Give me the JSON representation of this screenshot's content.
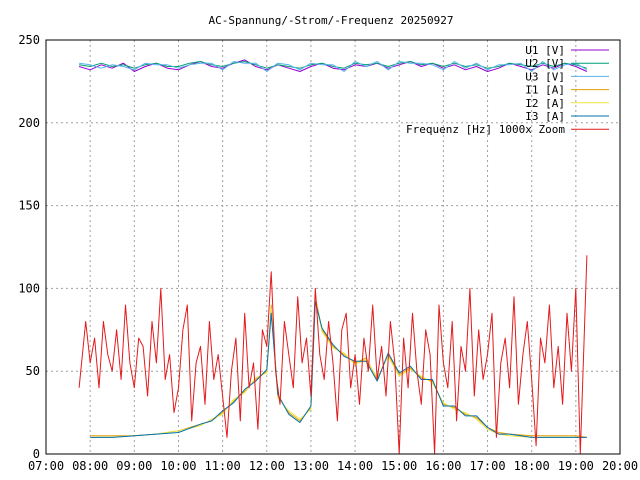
{
  "chart_data": {
    "type": "line",
    "title": "AC-Spannung/-Strom/-Frequenz 20250927",
    "xlabel": "",
    "ylabel": "",
    "x_ticks": [
      "07:00",
      "08:00",
      "09:00",
      "10:00",
      "11:00",
      "12:00",
      "13:00",
      "14:00",
      "15:00",
      "16:00",
      "17:00",
      "18:00",
      "19:00",
      "20:00"
    ],
    "xlim": [
      7,
      20
    ],
    "ylim": [
      0,
      250
    ],
    "y_ticks": [
      0,
      50,
      100,
      150,
      200,
      250
    ],
    "grid": true,
    "legend_position": "top-right",
    "series": [
      {
        "name": "U1 [V]",
        "color": "#9400d3",
        "x": [
          7.75,
          8.0,
          8.25,
          8.5,
          8.75,
          9.0,
          9.25,
          9.5,
          9.75,
          10.0,
          10.25,
          10.5,
          10.75,
          11.0,
          11.25,
          11.5,
          11.75,
          12.0,
          12.25,
          12.5,
          12.75,
          13.0,
          13.25,
          13.5,
          13.75,
          14.0,
          14.25,
          14.5,
          14.75,
          15.0,
          15.25,
          15.5,
          15.75,
          16.0,
          16.25,
          16.5,
          16.75,
          17.0,
          17.25,
          17.5,
          17.75,
          18.0,
          18.25,
          18.5,
          18.75,
          19.0,
          19.25
        ],
        "y": [
          234,
          232,
          235,
          233,
          236,
          231,
          234,
          236,
          233,
          232,
          235,
          237,
          234,
          233,
          236,
          238,
          234,
          232,
          235,
          233,
          231,
          234,
          236,
          233,
          232,
          235,
          234,
          236,
          233,
          235,
          237,
          234,
          236,
          233,
          235,
          232,
          234,
          231,
          233,
          236,
          234,
          232,
          235,
          233,
          236,
          234,
          231
        ]
      },
      {
        "name": "U2 [V]",
        "color": "#009e73",
        "x": [
          7.75,
          8.0,
          8.25,
          8.5,
          8.75,
          9.0,
          9.25,
          9.5,
          9.75,
          10.0,
          10.25,
          10.5,
          10.75,
          11.0,
          11.25,
          11.5,
          11.75,
          12.0,
          12.25,
          12.5,
          12.75,
          13.0,
          13.25,
          13.5,
          13.75,
          14.0,
          14.25,
          14.5,
          14.75,
          15.0,
          15.25,
          15.5,
          15.75,
          16.0,
          16.25,
          16.5,
          16.75,
          17.0,
          17.25,
          17.5,
          17.75,
          18.0,
          18.25,
          18.5,
          18.75,
          19.0,
          19.25
        ],
        "y": [
          235,
          234,
          236,
          234,
          235,
          233,
          235,
          236,
          234,
          234,
          236,
          237,
          235,
          234,
          236,
          237,
          235,
          233,
          235,
          234,
          233,
          235,
          236,
          234,
          233,
          236,
          235,
          236,
          234,
          236,
          237,
          235,
          236,
          234,
          236,
          234,
          235,
          233,
          234,
          236,
          235,
          234,
          236,
          234,
          236,
          235,
          233
        ]
      },
      {
        "name": "U3 [V]",
        "color": "#56b4e9",
        "x": [
          7.75,
          8.0,
          8.25,
          8.5,
          8.75,
          9.0,
          9.25,
          9.5,
          9.75,
          10.0,
          10.25,
          10.5,
          10.75,
          11.0,
          11.25,
          11.5,
          11.75,
          12.0,
          12.25,
          12.5,
          12.75,
          13.0,
          13.25,
          13.5,
          13.75,
          14.0,
          14.25,
          14.5,
          14.75,
          15.0,
          15.25,
          15.5,
          15.75,
          16.0,
          16.25,
          16.5,
          16.75,
          17.0,
          17.25,
          17.5,
          17.75,
          18.0,
          18.25,
          18.5,
          18.75,
          19.0,
          19.25
        ],
        "y": [
          236,
          235,
          233,
          235,
          234,
          232,
          236,
          235,
          235,
          233,
          235,
          236,
          236,
          232,
          237,
          236,
          236,
          231,
          236,
          235,
          232,
          236,
          235,
          235,
          231,
          237,
          234,
          237,
          232,
          237,
          236,
          236,
          235,
          232,
          237,
          233,
          236,
          232,
          235,
          235,
          236,
          231,
          237,
          232,
          235,
          236,
          232
        ]
      },
      {
        "name": "I1 [A]",
        "color": "#e69f00",
        "x": [
          8.0,
          8.5,
          9.0,
          9.5,
          10.0,
          10.5,
          10.75,
          11.0,
          11.25,
          11.5,
          11.75,
          12.0,
          12.1,
          12.25,
          12.5,
          12.75,
          13.0,
          13.1,
          13.25,
          13.5,
          13.75,
          14.0,
          14.25,
          14.5,
          14.75,
          15.0,
          15.25,
          15.5,
          15.75,
          16.0,
          16.25,
          16.5,
          16.75,
          17.0,
          17.25,
          17.5,
          18.0,
          18.5,
          19.0,
          19.25
        ],
        "y": [
          11,
          11,
          11,
          12,
          14,
          18,
          20,
          25,
          32,
          38,
          45,
          50,
          90,
          35,
          25,
          20,
          28,
          95,
          75,
          65,
          60,
          55,
          58,
          45,
          60,
          48,
          52,
          46,
          44,
          30,
          28,
          24,
          22,
          16,
          13,
          12,
          11,
          11,
          11,
          10
        ]
      },
      {
        "name": "I2 [A]",
        "color": "#f0e442",
        "x": [
          8.0,
          8.5,
          9.0,
          9.5,
          10.0,
          10.5,
          10.75,
          11.0,
          11.25,
          11.5,
          11.75,
          12.0,
          12.1,
          12.25,
          12.5,
          12.75,
          13.0,
          13.1,
          13.25,
          13.5,
          13.75,
          14.0,
          14.25,
          14.5,
          14.75,
          15.0,
          15.25,
          15.5,
          15.75,
          16.0,
          16.25,
          16.5,
          16.75,
          17.0,
          17.25,
          17.5,
          18.0,
          18.5,
          19.0,
          19.25
        ],
        "y": [
          10,
          10,
          11,
          12,
          14,
          17,
          21,
          24,
          33,
          37,
          46,
          49,
          88,
          34,
          26,
          21,
          27,
          93,
          74,
          64,
          61,
          54,
          57,
          46,
          59,
          47,
          51,
          47,
          43,
          31,
          27,
          25,
          21,
          15,
          12,
          11,
          10,
          10,
          10,
          10
        ]
      },
      {
        "name": "I3 [A]",
        "color": "#0072b2",
        "x": [
          8.0,
          8.5,
          9.0,
          9.5,
          10.0,
          10.5,
          10.75,
          11.0,
          11.25,
          11.5,
          11.75,
          12.0,
          12.1,
          12.25,
          12.5,
          12.75,
          13.0,
          13.1,
          13.25,
          13.5,
          13.75,
          14.0,
          14.25,
          14.5,
          14.75,
          15.0,
          15.25,
          15.5,
          15.75,
          16.0,
          16.25,
          16.5,
          16.75,
          17.0,
          17.25,
          17.5,
          18.0,
          18.5,
          19.0,
          19.25
        ],
        "y": [
          10,
          10,
          11,
          12,
          13,
          18,
          20,
          26,
          31,
          39,
          44,
          51,
          85,
          36,
          24,
          19,
          29,
          92,
          76,
          66,
          59,
          56,
          56,
          44,
          61,
          49,
          53,
          45,
          45,
          29,
          29,
          23,
          23,
          16,
          12,
          12,
          10,
          10,
          10,
          10
        ]
      },
      {
        "name": "Frequenz [Hz] 1000x Zoom",
        "color": "#e41a1c",
        "x": [
          7.75,
          7.9,
          8.0,
          8.1,
          8.2,
          8.3,
          8.4,
          8.5,
          8.6,
          8.7,
          8.8,
          8.9,
          9.0,
          9.1,
          9.2,
          9.3,
          9.4,
          9.5,
          9.6,
          9.7,
          9.8,
          9.9,
          10.0,
          10.1,
          10.2,
          10.3,
          10.4,
          10.5,
          10.6,
          10.7,
          10.8,
          10.9,
          11.0,
          11.1,
          11.2,
          11.3,
          11.4,
          11.5,
          11.6,
          11.7,
          11.8,
          11.9,
          12.0,
          12.1,
          12.2,
          12.3,
          12.4,
          12.5,
          12.6,
          12.7,
          12.8,
          12.9,
          13.0,
          13.1,
          13.2,
          13.3,
          13.4,
          13.5,
          13.6,
          13.7,
          13.8,
          13.9,
          14.0,
          14.1,
          14.2,
          14.3,
          14.4,
          14.5,
          14.6,
          14.7,
          14.8,
          14.9,
          15.0,
          15.1,
          15.2,
          15.3,
          15.4,
          15.5,
          15.6,
          15.7,
          15.8,
          15.9,
          16.0,
          16.1,
          16.2,
          16.3,
          16.4,
          16.5,
          16.6,
          16.7,
          16.8,
          16.9,
          17.0,
          17.1,
          17.2,
          17.3,
          17.4,
          17.5,
          17.6,
          17.7,
          17.8,
          17.9,
          18.0,
          18.1,
          18.2,
          18.3,
          18.4,
          18.5,
          18.6,
          18.7,
          18.8,
          18.9,
          19.0,
          19.1,
          19.2,
          19.25
        ],
        "y": [
          40,
          80,
          55,
          70,
          40,
          80,
          60,
          50,
          75,
          45,
          90,
          55,
          40,
          70,
          65,
          35,
          80,
          55,
          100,
          45,
          60,
          25,
          40,
          75,
          90,
          20,
          55,
          65,
          30,
          80,
          45,
          60,
          35,
          10,
          50,
          70,
          20,
          85,
          40,
          55,
          15,
          75,
          65,
          110,
          50,
          30,
          80,
          60,
          40,
          95,
          55,
          70,
          35,
          100,
          60,
          45,
          80,
          55,
          20,
          75,
          85,
          40,
          60,
          30,
          70,
          50,
          90,
          45,
          65,
          35,
          80,
          55,
          0,
          70,
          40,
          85,
          50,
          30,
          75,
          60,
          0,
          90,
          55,
          40,
          80,
          20,
          65,
          50,
          100,
          35,
          75,
          45,
          60,
          85,
          10,
          55,
          70,
          40,
          95,
          30,
          60,
          80,
          45,
          5,
          70,
          55,
          90,
          40,
          65,
          30,
          85,
          50,
          100,
          0,
          80,
          120
        ]
      }
    ]
  }
}
